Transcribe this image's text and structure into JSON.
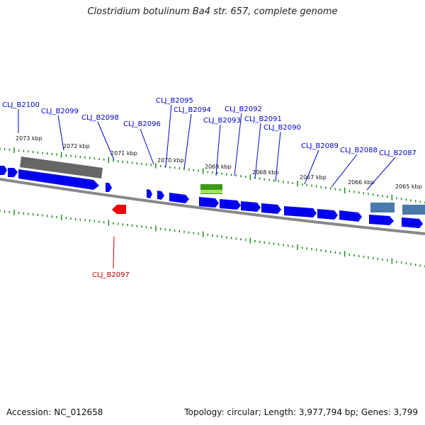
{
  "title": "Clostridium botulinum Ba4 str. 657, complete genome",
  "footer": {
    "accession": "Accession: NC_012658",
    "summary": "Topology: circular; Length: 3,977,794 bp; Genes: 3,799"
  },
  "scale_labels": [
    "2073 kbp",
    "2072 kbp",
    "2071 kbp",
    "2070 kbp",
    "2069 kbp",
    "2068 kbp",
    "2067 kbp",
    "2066 kbp",
    "2065 kbp"
  ],
  "gene_labels": [
    {
      "text": "CLJ_B2100",
      "color": "#0000cc"
    },
    {
      "text": "CLJ_B2099",
      "color": "#0000cc"
    },
    {
      "text": "CLJ_B2098",
      "color": "#0000cc"
    },
    {
      "text": "CLJ_B2096",
      "color": "#0000cc"
    },
    {
      "text": "CLJ_B2095",
      "color": "#0000cc"
    },
    {
      "text": "CLJ_B2094",
      "color": "#0000cc"
    },
    {
      "text": "CLJ_B2093",
      "color": "#0000cc"
    },
    {
      "text": "CLJ_B2092",
      "color": "#0000cc"
    },
    {
      "text": "CLJ_B2091",
      "color": "#0000cc"
    },
    {
      "text": "CLJ_B2090",
      "color": "#0000cc"
    },
    {
      "text": "CLJ_B2089",
      "color": "#0000cc"
    },
    {
      "text": "CLJ_B2088",
      "color": "#0000cc"
    },
    {
      "text": "CLJ_B2087",
      "color": "#0000cc"
    },
    {
      "text": "CLJ_B2097",
      "color": "#cc0000"
    }
  ],
  "colors": {
    "gene_forward": "#0000ee",
    "gene_reverse": "#ee0000",
    "tick": "#1a8a1a",
    "backbone": "#888888",
    "pseudo": "#666666",
    "rna": "#3a9a1a",
    "repeat": "#4a7aaa"
  }
}
